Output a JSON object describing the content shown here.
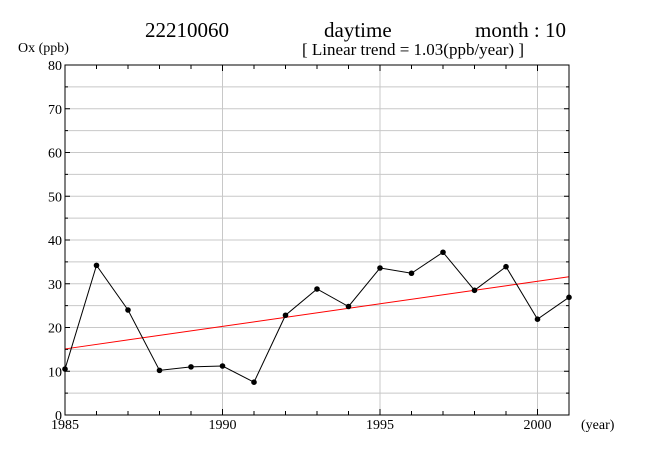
{
  "header": {
    "station": "22210060",
    "period": "daytime",
    "month_label": "month : 10",
    "trend_label": "[ Linear trend = 1.03(ppb/year) ]"
  },
  "chart_data": {
    "type": "line",
    "ylabel": "Ox (ppb)",
    "xlabel": "(year)",
    "xlim": [
      1985,
      2001
    ],
    "ylim": [
      0,
      80
    ],
    "x_ticks": [
      1985,
      1990,
      1995,
      2000
    ],
    "y_ticks": [
      0,
      10,
      20,
      30,
      40,
      50,
      60,
      70,
      80
    ],
    "grid": true,
    "series": [
      {
        "x": [
          1985,
          1986,
          1987,
          1988,
          1989,
          1990,
          1991,
          1992,
          1993,
          1994,
          1995,
          1996,
          1997,
          1998,
          1999,
          2000,
          2001
        ],
        "values": [
          10.5,
          34.2,
          24.0,
          10.2,
          11.0,
          11.2,
          7.5,
          22.8,
          28.8,
          24.8,
          33.6,
          32.4,
          37.2,
          28.5,
          33.9,
          21.9,
          26.9
        ],
        "color": "#000000"
      }
    ],
    "trend_line": {
      "slope": 1.03,
      "start": [
        1985,
        15.1
      ],
      "end": [
        2001,
        31.6
      ],
      "color": "#ff0000"
    }
  }
}
